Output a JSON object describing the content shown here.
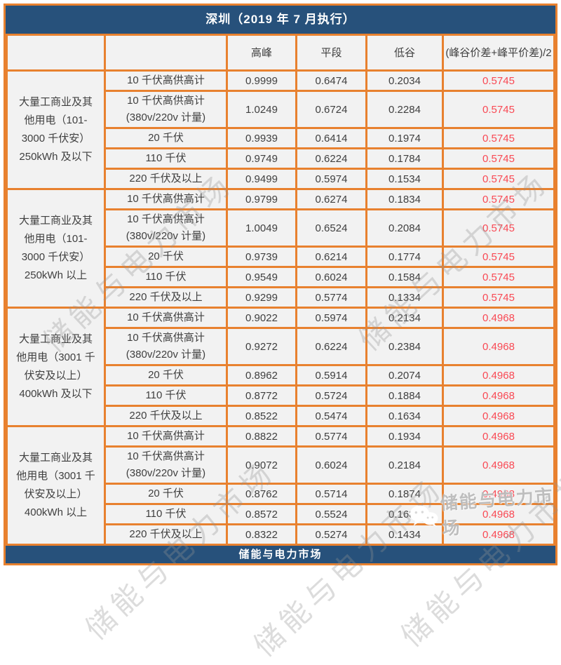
{
  "title": "深圳（2019 年 7 月执行）",
  "table": {
    "columns": [
      "",
      "",
      "高峰",
      "平段",
      "低谷",
      "(峰谷价差+峰平价差)/2"
    ],
    "groups": [
      {
        "label": "大量工商业及其\n他用电（101-\n3000 千伏安）\n250kWh 及以下",
        "rows": [
          {
            "label": "10 千伏高供高计",
            "peak": "0.9999",
            "flat": "0.6474",
            "valley": "0.2034",
            "diff": "0.5745"
          },
          {
            "label": "10 千伏高供高计\n(380v/220v 计量)",
            "peak": "1.0249",
            "flat": "0.6724",
            "valley": "0.2284",
            "diff": "0.5745"
          },
          {
            "label": "20 千伏",
            "peak": "0.9939",
            "flat": "0.6414",
            "valley": "0.1974",
            "diff": "0.5745"
          },
          {
            "label": "110 千伏",
            "peak": "0.9749",
            "flat": "0.6224",
            "valley": "0.1784",
            "diff": "0.5745"
          },
          {
            "label": "220 千伏及以上",
            "peak": "0.9499",
            "flat": "0.5974",
            "valley": "0.1534",
            "diff": "0.5745"
          }
        ]
      },
      {
        "label": "大量工商业及其\n他用电（101-\n3000 千伏安）\n250kWh 以上",
        "rows": [
          {
            "label": "10 千伏高供高计",
            "peak": "0.9799",
            "flat": "0.6274",
            "valley": "0.1834",
            "diff": "0.5745"
          },
          {
            "label": "10 千伏高供高计\n(380v/220v 计量)",
            "peak": "1.0049",
            "flat": "0.6524",
            "valley": "0.2084",
            "diff": "0.5745"
          },
          {
            "label": "20 千伏",
            "peak": "0.9739",
            "flat": "0.6214",
            "valley": "0.1774",
            "diff": "0.5745"
          },
          {
            "label": "110 千伏",
            "peak": "0.9549",
            "flat": "0.6024",
            "valley": "0.1584",
            "diff": "0.5745"
          },
          {
            "label": "220 千伏及以上",
            "peak": "0.9299",
            "flat": "0.5774",
            "valley": "0.1334",
            "diff": "0.5745"
          }
        ]
      },
      {
        "label": "大量工商业及其\n他用电（3001 千\n伏安及以上）\n400kWh 及以下",
        "rows": [
          {
            "label": "10 千伏高供高计",
            "peak": "0.9022",
            "flat": "0.5974",
            "valley": "0.2134",
            "diff": "0.4968"
          },
          {
            "label": "10 千伏高供高计\n(380v/220v 计量)",
            "peak": "0.9272",
            "flat": "0.6224",
            "valley": "0.2384",
            "diff": "0.4968"
          },
          {
            "label": "20 千伏",
            "peak": "0.8962",
            "flat": "0.5914",
            "valley": "0.2074",
            "diff": "0.4968"
          },
          {
            "label": "110 千伏",
            "peak": "0.8772",
            "flat": "0.5724",
            "valley": "0.1884",
            "diff": "0.4968"
          },
          {
            "label": "220 千伏及以上",
            "peak": "0.8522",
            "flat": "0.5474",
            "valley": "0.1634",
            "diff": "0.4968"
          }
        ]
      },
      {
        "label": "大量工商业及其\n他用电（3001 千\n伏安及以上）\n400kWh 以上",
        "rows": [
          {
            "label": "10 千伏高供高计",
            "peak": "0.8822",
            "flat": "0.5774",
            "valley": "0.1934",
            "diff": "0.4968"
          },
          {
            "label": "10 千伏高供高计\n(380v/220v 计量)",
            "peak": "0.9072",
            "flat": "0.6024",
            "valley": "0.2184",
            "diff": "0.4968"
          },
          {
            "label": "20 千伏",
            "peak": "0.8762",
            "flat": "0.5714",
            "valley": "0.1874",
            "diff": "0.4968"
          },
          {
            "label": "110 千伏",
            "peak": "0.8572",
            "flat": "0.5524",
            "valley": "0.1684",
            "diff": "0.4968"
          },
          {
            "label": "220 千伏及以上",
            "peak": "0.8322",
            "flat": "0.5274",
            "valley": "0.1434",
            "diff": "0.4968"
          }
        ]
      }
    ]
  },
  "footer": "储能与电力市场",
  "watermark": {
    "text": "储能与电力市场",
    "wechat_label": "储能与电力市场"
  },
  "colors": {
    "navy": "#27517B",
    "orange": "#E8812F",
    "red": "#F94954",
    "cell_bg": "#F2F2F2"
  }
}
